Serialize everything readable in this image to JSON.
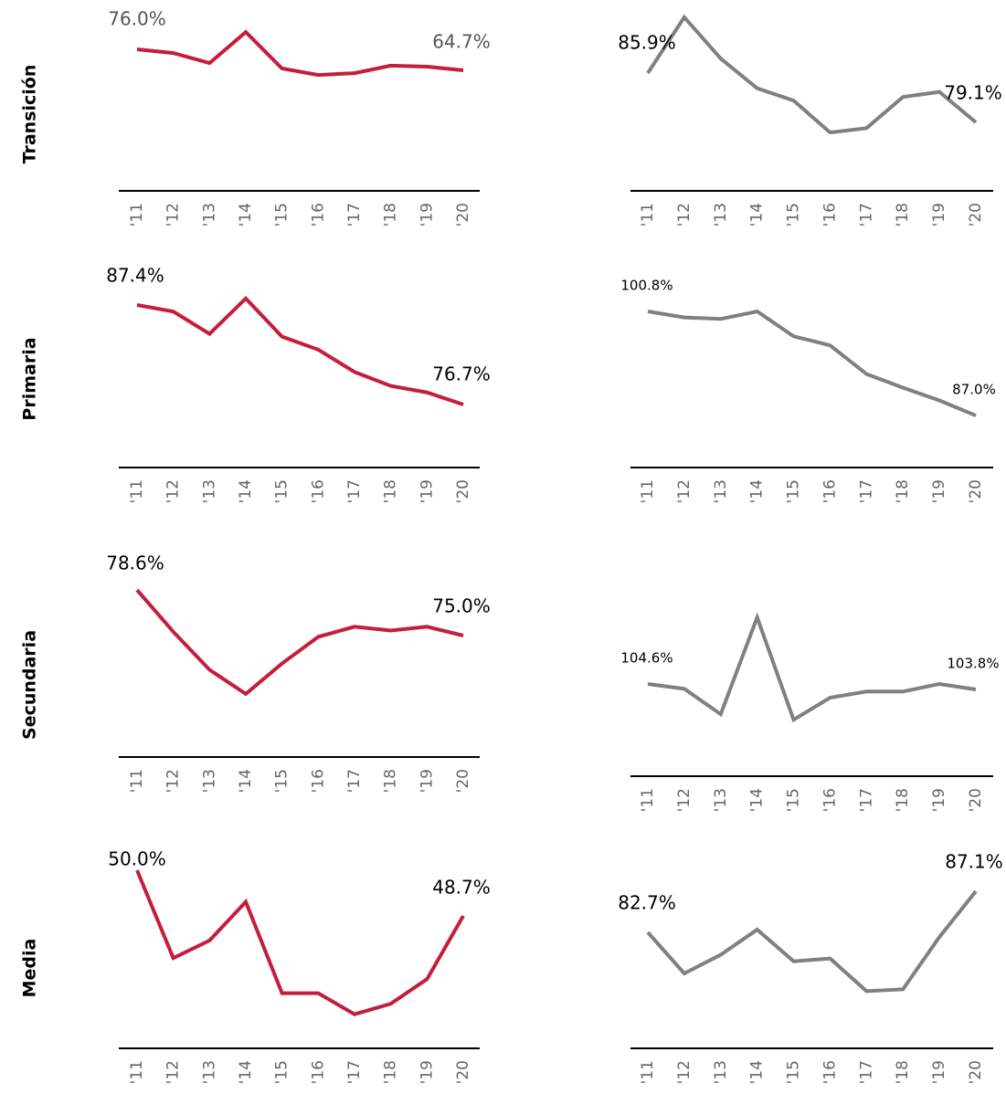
{
  "row_labels": [
    "Transición",
    "Primaria",
    "Secundaria",
    "Media"
  ],
  "chart_data": [
    {
      "type": "line",
      "categories": [
        "'11",
        "'12",
        "'13",
        "'14",
        "'15",
        "'16",
        "'17",
        "'18",
        "'19",
        "'20"
      ],
      "ylim": [
        60,
        90
      ],
      "series": [
        {
          "color": "#c41e3a",
          "values": [
            76.0,
            74.0,
            68.6,
            85.3,
            65.7,
            62.2,
            63.2,
            67.2,
            66.7,
            64.7
          ],
          "value_labels": [
            "76.0%",
            null,
            null,
            null,
            null,
            null,
            null,
            null,
            null,
            "64.7%"
          ]
        }
      ]
    },
    {
      "type": "line",
      "categories": [
        "'11",
        "'12",
        "'13",
        "'14",
        "'15",
        "'16",
        "'17",
        "'18",
        "'19",
        "'20"
      ],
      "ylim": [
        75,
        95
      ],
      "series": [
        {
          "color": "#808080",
          "values": [
            85.9,
            93.6,
            87.9,
            83.8,
            82.1,
            77.7,
            78.3,
            82.6,
            83.3,
            79.1
          ],
          "value_labels": [
            "85.9%",
            null,
            null,
            null,
            null,
            null,
            null,
            null,
            null,
            "79.1%"
          ]
        }
      ]
    },
    {
      "type": "line",
      "categories": [
        "'11",
        "'12",
        "'13",
        "'14",
        "'15",
        "'16",
        "'17",
        "'18",
        "'19",
        "'20"
      ],
      "ylim": [
        75,
        90
      ],
      "series": [
        {
          "color": "#c41e3a",
          "values": [
            87.4,
            86.7,
            84.3,
            88.1,
            84.0,
            82.6,
            80.2,
            78.7,
            78.0,
            76.7
          ],
          "value_labels": [
            "87.4%",
            null,
            null,
            null,
            null,
            null,
            null,
            null,
            null,
            "76.7%"
          ]
        }
      ]
    },
    {
      "type": "line",
      "categories": [
        "'11",
        "'12",
        "'13",
        "'14",
        "'15",
        "'16",
        "'17",
        "'18",
        "'19",
        "'20"
      ],
      "ylim": [
        85,
        105
      ],
      "series": [
        {
          "color": "#808080",
          "values": [
            100.8,
            100.0,
            99.8,
            100.8,
            97.5,
            96.3,
            92.5,
            90.7,
            89.0,
            87.0
          ],
          "value_labels": [
            "100.8%",
            null,
            null,
            null,
            null,
            null,
            null,
            null,
            null,
            "87.0%"
          ]
        }
      ]
    },
    {
      "type": "line",
      "categories": [
        "'11",
        "'12",
        "'13",
        "'14",
        "'15",
        "'16",
        "'17",
        "'18",
        "'19",
        "'20"
      ],
      "ylim": [
        70,
        80
      ],
      "series": [
        {
          "color": "#c41e3a",
          "values": [
            78.6,
            75.3,
            72.3,
            70.4,
            72.8,
            74.9,
            75.7,
            75.4,
            75.7,
            75.0
          ],
          "value_labels": [
            "78.6%",
            null,
            null,
            null,
            null,
            null,
            null,
            null,
            null,
            "75.0%"
          ]
        }
      ]
    },
    {
      "type": "line",
      "categories": [
        "'11",
        "'12",
        "'13",
        "'14",
        "'15",
        "'16",
        "'17",
        "'18",
        "'19",
        "'20"
      ],
      "ylim": [
        95,
        115
      ],
      "series": [
        {
          "color": "#808080",
          "values": [
            104.6,
            103.9,
            100.2,
            114.3,
            99.4,
            102.6,
            103.5,
            103.5,
            104.6,
            103.8
          ],
          "value_labels": [
            "104.6%",
            null,
            null,
            null,
            null,
            null,
            null,
            null,
            null,
            "103.8%"
          ]
        }
      ]
    },
    {
      "type": "line",
      "categories": [
        "'11",
        "'12",
        "'13",
        "'14",
        "'15",
        "'16",
        "'17",
        "'18",
        "'19",
        "'20"
      ],
      "ylim": [
        45,
        51
      ],
      "series": [
        {
          "color": "#c41e3a",
          "values": [
            50.0,
            47.5,
            48.0,
            49.1,
            46.5,
            46.5,
            45.9,
            46.2,
            46.9,
            48.7
          ],
          "value_labels": [
            "50.0%",
            null,
            null,
            null,
            null,
            null,
            null,
            null,
            null,
            "48.7%"
          ]
        }
      ]
    },
    {
      "type": "line",
      "categories": [
        "'11",
        "'12",
        "'13",
        "'14",
        "'15",
        "'16",
        "'17",
        "'18",
        "'19",
        "'20"
      ],
      "ylim": [
        75,
        90
      ],
      "series": [
        {
          "color": "#808080",
          "values": [
            82.7,
            78.3,
            80.3,
            83.0,
            79.6,
            79.9,
            76.4,
            76.6,
            82.2,
            87.1
          ],
          "value_labels": [
            "82.7%",
            null,
            null,
            null,
            null,
            null,
            null,
            null,
            null,
            "87.1%"
          ]
        }
      ]
    }
  ]
}
